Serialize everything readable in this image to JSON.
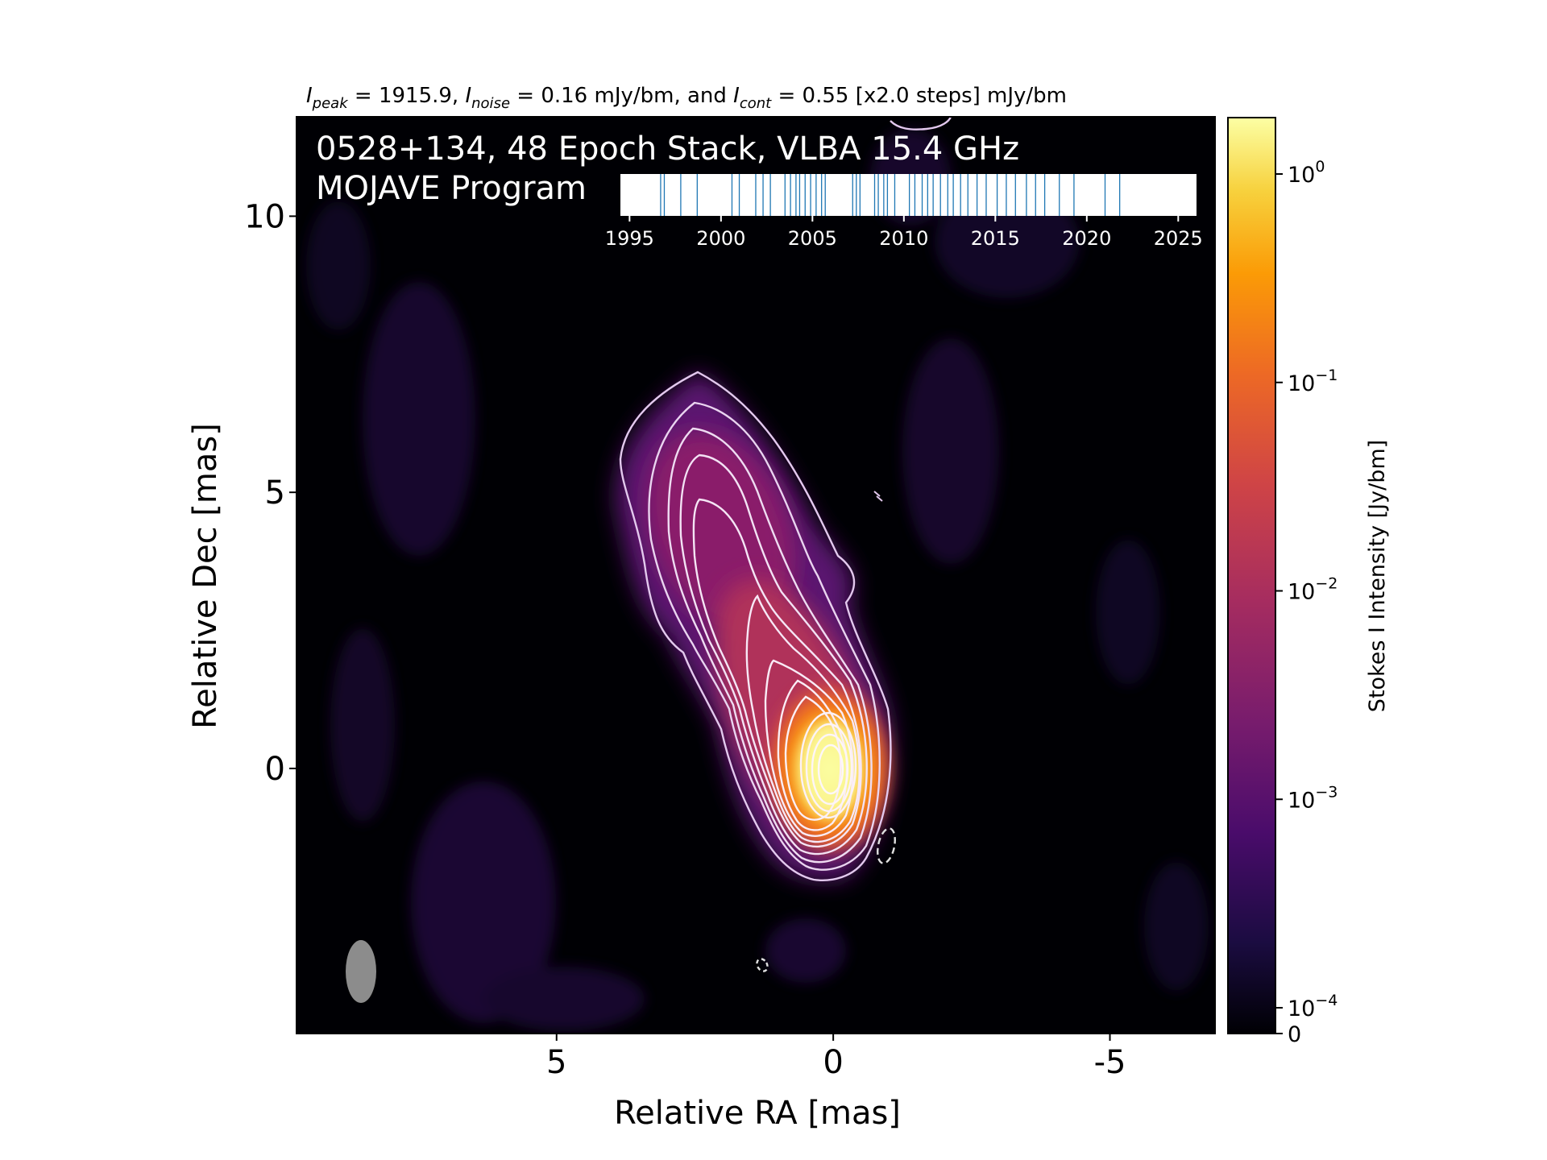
{
  "header": {
    "stats_line": {
      "peak_symbol": "I",
      "peak_sub": "peak",
      "peak_value": " = 1915.9, ",
      "noise_symbol": "I",
      "noise_sub": "noise",
      "noise_value": " = 0.16 mJy/bm, and ",
      "cont_symbol": "I",
      "cont_sub": "cont",
      "cont_value": " = 0.55 [x2.0 steps] mJy/bm"
    }
  },
  "panel": {
    "title_line1": "0528+134, 48 Epoch Stack, VLBA 15.4 GHz",
    "title_line2": "MOJAVE Program"
  },
  "colors": {
    "background": "#000004",
    "inner_contour": "#fbe7f1",
    "outer_contour": "#e3c9ee",
    "beam": "#8c8c8c",
    "epoch_tick": "#1f77b4"
  },
  "chart_data": [
    {
      "type": "heatmap",
      "title": "",
      "xlabel": "Relative RA [mas]",
      "ylabel": "Relative Dec [mas]",
      "xlim": [
        9.7,
        -6.9
      ],
      "ylim": [
        -4.8,
        11.8
      ],
      "x_ticks": [
        5,
        0,
        -5
      ],
      "x_tick_labels": [
        "5",
        "0",
        "-5"
      ],
      "y_ticks": [
        10,
        5,
        0
      ],
      "y_tick_labels": [
        "10",
        "5",
        "0"
      ],
      "colormap": "inferno",
      "color_scale": "log",
      "grid": false,
      "contour_levels_count": 13,
      "beam": {
        "label": "",
        "shape": "ellipse",
        "position": "bottom-left"
      },
      "colorbar": {
        "label": "Stokes I Intensity [Jy/bm]",
        "tick_labels": [
          {
            "base": "10",
            "exp": "0",
            "value": 1
          },
          {
            "base": "10",
            "exp": "−1",
            "value": 0.1
          },
          {
            "base": "10",
            "exp": "−2",
            "value": 0.01
          },
          {
            "base": "10",
            "exp": "−3",
            "value": 0.001
          },
          {
            "base": "10",
            "exp": "−4",
            "value": 0.0001
          },
          {
            "base": "0",
            "exp": "",
            "value": 0
          }
        ]
      }
    },
    {
      "type": "scatter",
      "title": "",
      "xlabel": "",
      "ylabel": "",
      "xlim": [
        1994.5,
        2026
      ],
      "x_ticks": [
        1995,
        2000,
        2005,
        2010,
        2015,
        2020,
        2025
      ],
      "x_tick_labels": [
        "1995",
        "2000",
        "2005",
        "2010",
        "2015",
        "2020",
        "2025"
      ],
      "epochs": [
        1996.7,
        1996.9,
        1997.8,
        1998.7,
        2000.6,
        2001.0,
        2001.9,
        2002.3,
        2002.7,
        2003.5,
        2003.8,
        2004.1,
        2004.3,
        2004.6,
        2004.9,
        2005.2,
        2005.5,
        2005.7,
        2007.2,
        2007.4,
        2007.6,
        2008.4,
        2008.6,
        2008.9,
        2009.1,
        2009.5,
        2010.3,
        2010.6,
        2011.0,
        2011.3,
        2011.6,
        2012.0,
        2012.4,
        2012.7,
        2013.1,
        2013.5,
        2014.0,
        2014.5,
        2015.1,
        2015.6,
        2016.1,
        2016.7,
        2017.2,
        2017.7,
        2018.5,
        2019.3,
        2021.0,
        2021.8
      ]
    }
  ]
}
